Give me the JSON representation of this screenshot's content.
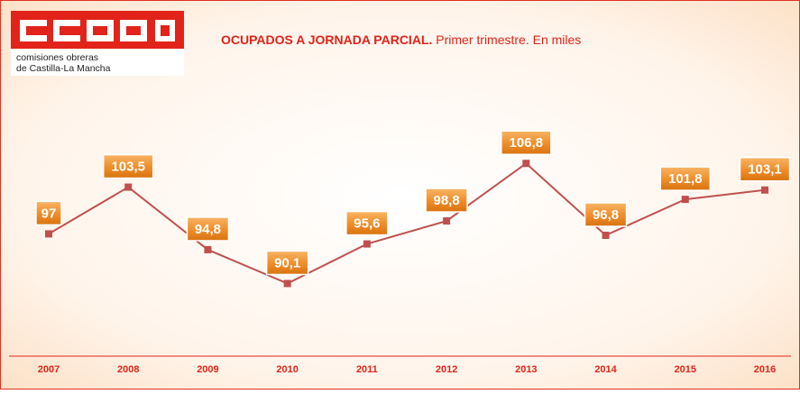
{
  "logo": {
    "lines": [
      "comisiones obreras",
      "de Castilla-La Mancha"
    ]
  },
  "chart_data": {
    "type": "line",
    "title": "OCUPADOS A JORNADA PARCIAL.",
    "subtitle": "Primer trimestre. En miles",
    "categories": [
      "2007",
      "2008",
      "2009",
      "2010",
      "2011",
      "2012",
      "2013",
      "2014",
      "2015",
      "2016"
    ],
    "values": [
      97,
      103.5,
      94.8,
      90.1,
      95.6,
      98.8,
      106.8,
      96.8,
      101.8,
      103.1
    ],
    "value_labels": [
      "97",
      "103,5",
      "94,8",
      "90,1",
      "95,6",
      "98,8",
      "106,8",
      "96,8",
      "101,8",
      "103,1"
    ],
    "color": "#c0504d",
    "ylim": [
      80,
      122
    ]
  }
}
